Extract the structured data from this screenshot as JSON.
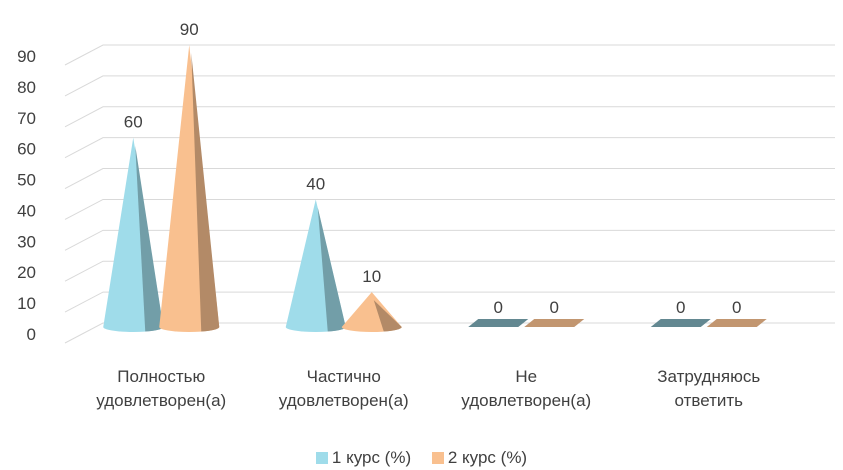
{
  "chart_data": {
    "type": "bar",
    "categories": [
      [
        "Полностью",
        "удовлетворен(а)"
      ],
      [
        "Частично",
        "удовлетворен(а)"
      ],
      [
        "Не",
        "удовлетворен(а)"
      ],
      [
        "Затрудняюсь",
        "ответить"
      ]
    ],
    "series": [
      {
        "name": "1 курс (%)",
        "values": [
          60,
          40,
          0,
          0
        ],
        "color": "#9fdcea"
      },
      {
        "name": "2 курс (%)",
        "values": [
          90,
          10,
          0,
          0
        ],
        "color": "#f9c08f"
      }
    ],
    "ylim": [
      0,
      90
    ],
    "yticks": [
      0,
      10,
      20,
      30,
      40,
      50,
      60,
      70,
      80,
      90
    ],
    "grid": true,
    "mark_shape": "cone",
    "legend_position": "bottom"
  }
}
